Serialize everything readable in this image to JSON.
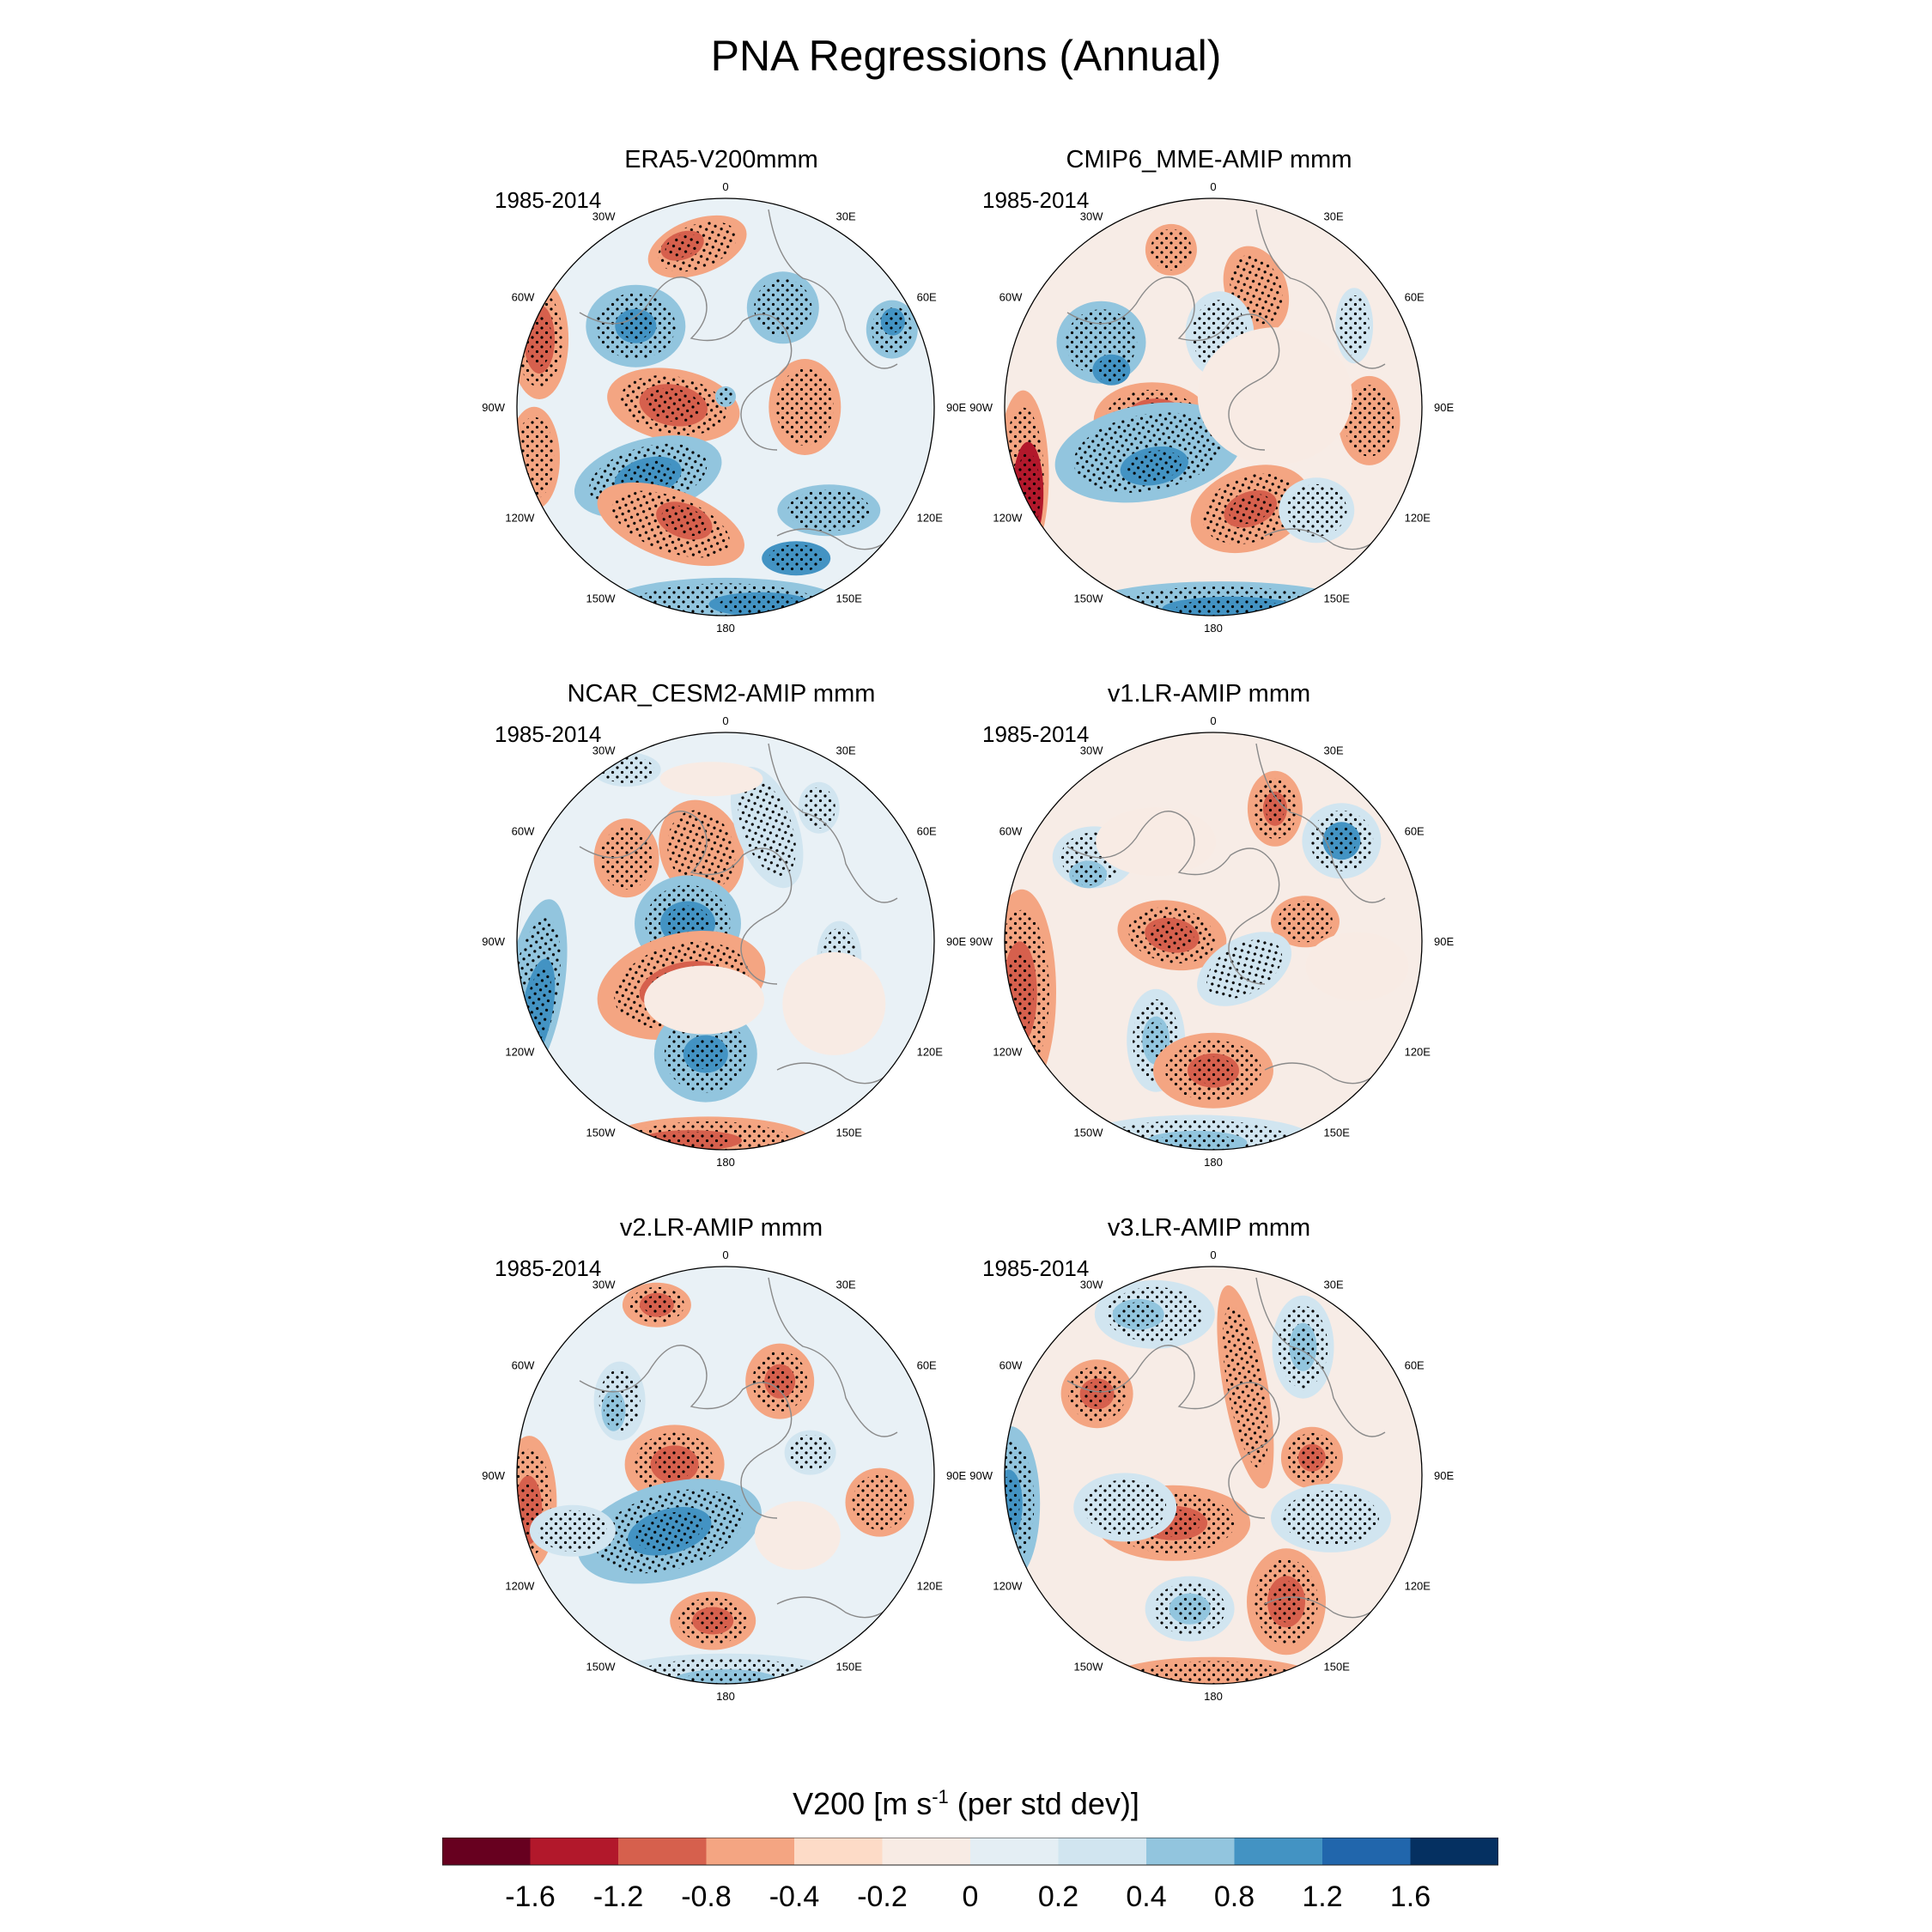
{
  "chart_data": {
    "type": "contour-map",
    "title": "PNA Regressions (Annual)",
    "projection": "polar stereographic (Northern Hemisphere)",
    "longitude_labels": [
      "0",
      "30E",
      "60E",
      "90E",
      "120E",
      "150E",
      "180",
      "150W",
      "120W",
      "90W",
      "60W",
      "30W"
    ],
    "panels": [
      {
        "id": "era5",
        "title": "ERA5-V200mmm",
        "period": "1985-2014"
      },
      {
        "id": "cmip6",
        "title": "CMIP6_MME-AMIP  mmm",
        "period": "1985-2014"
      },
      {
        "id": "cesm2",
        "title": "NCAR_CESM2-AMIP  mmm",
        "period": "1985-2014"
      },
      {
        "id": "v1",
        "title": "v1.LR-AMIP  mmm",
        "period": "1985-2014"
      },
      {
        "id": "v2",
        "title": "v2.LR-AMIP  mmm",
        "period": "1985-2014"
      },
      {
        "id": "v3",
        "title": "v3.LR-AMIP  mmm",
        "period": "1985-2014"
      }
    ],
    "colorbar": {
      "title_main": "V200 [m s",
      "title_sup": "-1",
      "title_rest": " (per std dev)]",
      "levels": [
        "-1.6",
        "-1.2",
        "-0.8",
        "-0.4",
        "-0.2",
        "0",
        "0.2",
        "0.4",
        "0.8",
        "1.2",
        "1.6"
      ],
      "colors": [
        "#67001f",
        "#b2182b",
        "#d6604d",
        "#f4a582",
        "#fddbc7",
        "#f8ebe4",
        "#e4eef4",
        "#d1e5f0",
        "#92c5de",
        "#4393c3",
        "#2166ac",
        "#053061"
      ]
    }
  }
}
